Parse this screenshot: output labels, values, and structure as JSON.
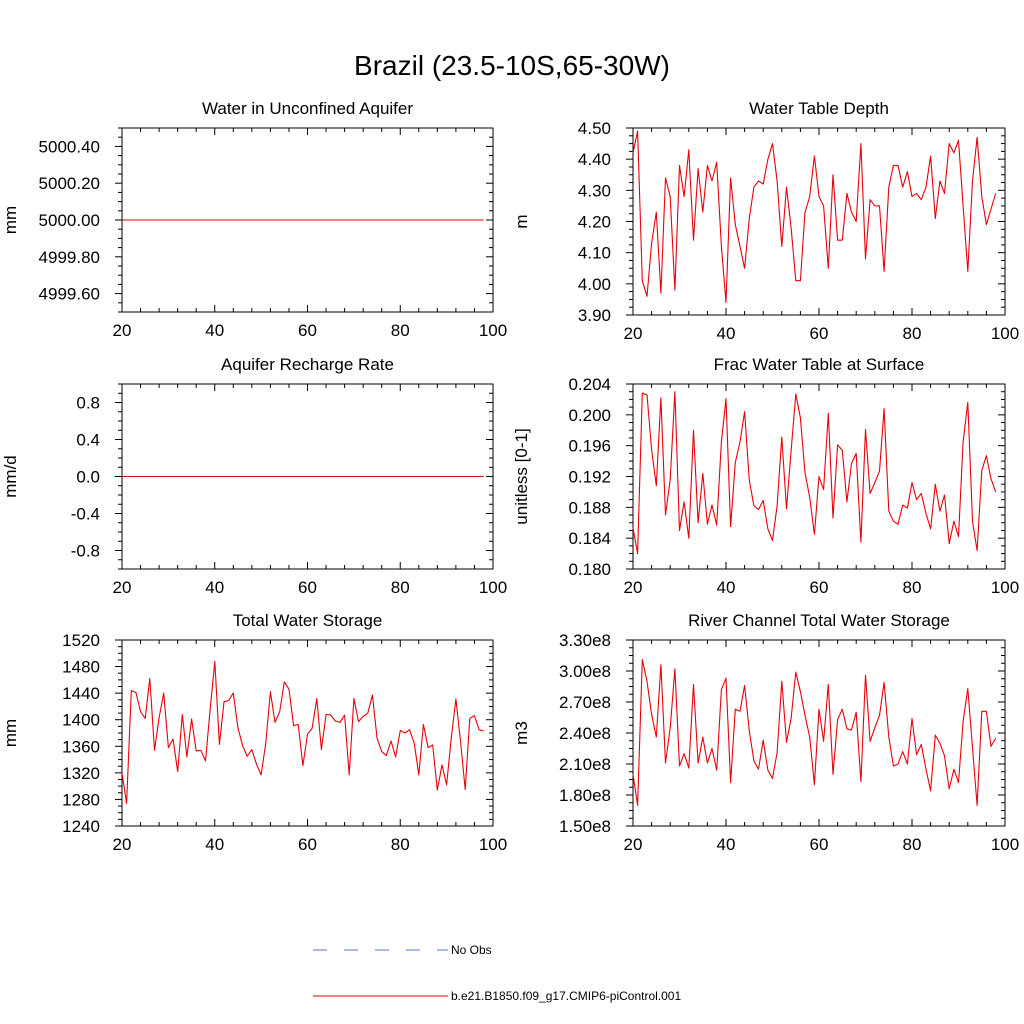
{
  "figure": {
    "title": "Brazil (23.5-10S,65-30W)",
    "legend": {
      "entries": [
        {
          "label": "No Obs",
          "color": "#5b6fd6",
          "style": "dashed"
        },
        {
          "label": "b.e21.B1850.f09_g17.CMIP6-piControl.001",
          "color": "#e8000b",
          "style": "solid"
        }
      ]
    }
  },
  "chart_data": [
    {
      "type": "line",
      "title": "Water in Unconfined Aquifer",
      "xlabel": "",
      "ylabel": "mm",
      "xlim": [
        20,
        100
      ],
      "ylim": [
        4999.5,
        5000.5
      ],
      "xticks": [
        20,
        40,
        60,
        80,
        100
      ],
      "xtick_labels": [
        "20",
        "40",
        "60",
        "80",
        "100"
      ],
      "yticks": [
        4999.6,
        4999.8,
        5000.0,
        5000.2,
        5000.4
      ],
      "ytick_labels": [
        "4999.60",
        "4999.80",
        "5000.00",
        "5000.20",
        "5000.40"
      ],
      "series": [
        {
          "color": "#e8000b",
          "x": [
            20,
            98
          ],
          "y": [
            5000.0,
            5000.0
          ]
        }
      ]
    },
    {
      "type": "line",
      "title": "Water Table Depth",
      "xlabel": "",
      "ylabel": "m",
      "xlim": [
        20,
        100
      ],
      "ylim": [
        3.9,
        4.5
      ],
      "xticks": [
        20,
        40,
        60,
        80,
        100
      ],
      "xtick_labels": [
        "20",
        "40",
        "60",
        "80",
        "100"
      ],
      "yticks": [
        3.9,
        4.0,
        4.1,
        4.2,
        4.3,
        4.4,
        4.5
      ],
      "ytick_labels": [
        "3.90",
        "4.00",
        "4.10",
        "4.20",
        "4.30",
        "4.40",
        "4.50"
      ],
      "series": [
        {
          "color": "#e8000b",
          "x": [
            20,
            21,
            22,
            23,
            24,
            25,
            26,
            27,
            28,
            29,
            30,
            31,
            32,
            33,
            34,
            35,
            36,
            37,
            38,
            39,
            40,
            41,
            42,
            43,
            44,
            45,
            46,
            47,
            48,
            49,
            50,
            51,
            52,
            53,
            54,
            55,
            56,
            57,
            58,
            59,
            60,
            61,
            62,
            63,
            64,
            65,
            66,
            67,
            68,
            69,
            70,
            71,
            72,
            73,
            74,
            75,
            76,
            77,
            78,
            79,
            80,
            81,
            82,
            83,
            84,
            85,
            86,
            87,
            88,
            89,
            90,
            91,
            92,
            93,
            94,
            95,
            96,
            97,
            98
          ],
          "y": [
            4.42,
            4.49,
            4.01,
            3.96,
            4.13,
            4.23,
            3.97,
            4.34,
            4.28,
            3.98,
            4.38,
            4.28,
            4.43,
            4.14,
            4.37,
            4.23,
            4.38,
            4.33,
            4.39,
            4.12,
            3.94,
            4.34,
            4.19,
            4.12,
            4.05,
            4.21,
            4.31,
            4.33,
            4.32,
            4.4,
            4.45,
            4.33,
            4.12,
            4.31,
            4.18,
            4.01,
            4.01,
            4.23,
            4.28,
            4.41,
            4.28,
            4.25,
            4.05,
            4.35,
            4.14,
            4.14,
            4.29,
            4.23,
            4.2,
            4.45,
            4.08,
            4.27,
            4.25,
            4.25,
            4.04,
            4.31,
            4.38,
            4.38,
            4.31,
            4.36,
            4.28,
            4.29,
            4.27,
            4.31,
            4.41,
            4.21,
            4.33,
            4.29,
            4.45,
            4.42,
            4.46,
            4.25,
            4.04,
            4.33,
            4.47,
            4.28,
            4.19,
            4.24,
            4.29
          ]
        }
      ]
    },
    {
      "type": "line",
      "title": "Aquifer Recharge Rate",
      "xlabel": "",
      "ylabel": "mm/d",
      "xlim": [
        20,
        100
      ],
      "ylim": [
        -1.0,
        1.0
      ],
      "xticks": [
        20,
        40,
        60,
        80,
        100
      ],
      "xtick_labels": [
        "20",
        "40",
        "60",
        "80",
        "100"
      ],
      "yticks": [
        -0.8,
        -0.4,
        0.0,
        0.4,
        0.8
      ],
      "ytick_labels": [
        "-0.8",
        "-0.4",
        "0.0",
        "0.4",
        "0.8"
      ],
      "series": [
        {
          "color": "#e8000b",
          "x": [
            20,
            98
          ],
          "y": [
            0.0,
            0.0
          ]
        }
      ]
    },
    {
      "type": "line",
      "title": "Frac Water Table at Surface",
      "xlabel": "",
      "ylabel": "unitless [0-1]",
      "xlim": [
        20,
        100
      ],
      "ylim": [
        0.18,
        0.204
      ],
      "xticks": [
        20,
        40,
        60,
        80,
        100
      ],
      "xtick_labels": [
        "20",
        "40",
        "60",
        "80",
        "100"
      ],
      "yticks": [
        0.18,
        0.184,
        0.188,
        0.192,
        0.196,
        0.2,
        0.204
      ],
      "ytick_labels": [
        "0.180",
        "0.184",
        "0.188",
        "0.192",
        "0.196",
        "0.200",
        "0.204"
      ],
      "series": [
        {
          "color": "#e8000b",
          "x": [
            20,
            21,
            22,
            23,
            24,
            25,
            26,
            27,
            28,
            29,
            30,
            31,
            32,
            33,
            34,
            35,
            36,
            37,
            38,
            39,
            40,
            41,
            42,
            43,
            44,
            45,
            46,
            47,
            48,
            49,
            50,
            51,
            52,
            53,
            54,
            55,
            56,
            57,
            58,
            59,
            60,
            61,
            62,
            63,
            64,
            65,
            66,
            67,
            68,
            69,
            70,
            71,
            72,
            73,
            74,
            75,
            76,
            77,
            78,
            79,
            80,
            81,
            82,
            83,
            84,
            85,
            86,
            87,
            88,
            89,
            90,
            91,
            92,
            93,
            94,
            95,
            96,
            97,
            98
          ],
          "y": [
            0.1853,
            0.182,
            0.2028,
            0.2026,
            0.1955,
            0.1908,
            0.2022,
            0.187,
            0.1916,
            0.203,
            0.185,
            0.1887,
            0.184,
            0.198,
            0.186,
            0.1924,
            0.1858,
            0.1883,
            0.1857,
            0.1965,
            0.2021,
            0.1855,
            0.1938,
            0.1965,
            0.2004,
            0.1915,
            0.1882,
            0.1877,
            0.1889,
            0.1852,
            0.1837,
            0.1882,
            0.1971,
            0.1878,
            0.1953,
            0.2027,
            0.1996,
            0.1925,
            0.1893,
            0.1845,
            0.192,
            0.1903,
            0.2002,
            0.1866,
            0.1961,
            0.1954,
            0.1887,
            0.1937,
            0.195,
            0.1835,
            0.1981,
            0.1898,
            0.1912,
            0.1927,
            0.2008,
            0.1875,
            0.1862,
            0.1858,
            0.1883,
            0.1879,
            0.1912,
            0.189,
            0.1898,
            0.1872,
            0.1852,
            0.191,
            0.1875,
            0.1896,
            0.1833,
            0.1862,
            0.1842,
            0.1965,
            0.2016,
            0.1862,
            0.1824,
            0.1928,
            0.1947,
            0.1917,
            0.19
          ]
        }
      ]
    },
    {
      "type": "line",
      "title": "Total Water Storage",
      "xlabel": "",
      "ylabel": "mm",
      "xlim": [
        20,
        100
      ],
      "ylim": [
        1240,
        1520
      ],
      "xticks": [
        20,
        40,
        60,
        80,
        100
      ],
      "xtick_labels": [
        "20",
        "40",
        "60",
        "80",
        "100"
      ],
      "yticks": [
        1240,
        1280,
        1320,
        1360,
        1400,
        1440,
        1480,
        1520
      ],
      "ytick_labels": [
        "1240",
        "1280",
        "1320",
        "1360",
        "1400",
        "1440",
        "1480",
        "1520"
      ],
      "series": [
        {
          "color": "#e8000b",
          "x": [
            20,
            21,
            22,
            23,
            24,
            25,
            26,
            27,
            28,
            29,
            30,
            31,
            32,
            33,
            34,
            35,
            36,
            37,
            38,
            39,
            40,
            41,
            42,
            43,
            44,
            45,
            46,
            47,
            48,
            49,
            50,
            51,
            52,
            53,
            54,
            55,
            56,
            57,
            58,
            59,
            60,
            61,
            62,
            63,
            64,
            65,
            66,
            67,
            68,
            69,
            70,
            71,
            72,
            73,
            74,
            75,
            76,
            77,
            78,
            79,
            80,
            81,
            82,
            83,
            84,
            85,
            86,
            87,
            88,
            89,
            90,
            91,
            92,
            93,
            94,
            95,
            96,
            97,
            98
          ],
          "y": [
            1320,
            1274,
            1444,
            1441,
            1412,
            1402,
            1462,
            1354,
            1403,
            1440,
            1358,
            1371,
            1322,
            1408,
            1344,
            1401,
            1353,
            1354,
            1338,
            1415,
            1488,
            1363,
            1427,
            1429,
            1440,
            1388,
            1361,
            1345,
            1355,
            1333,
            1317,
            1365,
            1442,
            1396,
            1412,
            1457,
            1446,
            1391,
            1393,
            1331,
            1378,
            1387,
            1432,
            1355,
            1408,
            1407,
            1398,
            1396,
            1407,
            1317,
            1432,
            1397,
            1405,
            1410,
            1437,
            1372,
            1352,
            1346,
            1368,
            1344,
            1384,
            1380,
            1385,
            1365,
            1317,
            1393,
            1358,
            1362,
            1294,
            1332,
            1302,
            1373,
            1431,
            1368,
            1295,
            1402,
            1406,
            1385,
            1383
          ]
        }
      ]
    },
    {
      "type": "line",
      "title": "River Channel Total Water Storage",
      "xlabel": "",
      "ylabel": "m3",
      "xlim": [
        20,
        100
      ],
      "ylim": [
        150000000,
        330000000
      ],
      "xticks": [
        20,
        40,
        60,
        80,
        100
      ],
      "xtick_labels": [
        "20",
        "40",
        "60",
        "80",
        "100"
      ],
      "yticks": [
        150000000,
        180000000,
        210000000,
        240000000,
        270000000,
        300000000,
        330000000
      ],
      "ytick_labels": [
        "1.50e8",
        "1.80e8",
        "2.10e8",
        "2.40e8",
        "2.70e8",
        "3.00e8",
        "3.30e8"
      ],
      "series": [
        {
          "color": "#e8000b",
          "x": [
            20,
            21,
            22,
            23,
            24,
            25,
            26,
            27,
            28,
            29,
            30,
            31,
            32,
            33,
            34,
            35,
            36,
            37,
            38,
            39,
            40,
            41,
            42,
            43,
            44,
            45,
            46,
            47,
            48,
            49,
            50,
            51,
            52,
            53,
            54,
            55,
            56,
            57,
            58,
            59,
            60,
            61,
            62,
            63,
            64,
            65,
            66,
            67,
            68,
            69,
            70,
            71,
            72,
            73,
            74,
            75,
            76,
            77,
            78,
            79,
            80,
            81,
            82,
            83,
            84,
            85,
            86,
            87,
            88,
            89,
            90,
            91,
            92,
            93,
            94,
            95,
            96,
            97,
            98
          ],
          "y": [
            200000000,
            170000000,
            311000000,
            290000000,
            258000000,
            236000000,
            306000000,
            211000000,
            245000000,
            302000000,
            208000000,
            220000000,
            206000000,
            287000000,
            211000000,
            236000000,
            211000000,
            225000000,
            204000000,
            282000000,
            293000000,
            192000000,
            263000000,
            261000000,
            286000000,
            242000000,
            213000000,
            205000000,
            233000000,
            204000000,
            196000000,
            221000000,
            290000000,
            231000000,
            254000000,
            299000000,
            280000000,
            257000000,
            236000000,
            190000000,
            263000000,
            232000000,
            287000000,
            200000000,
            253000000,
            263000000,
            244000000,
            243000000,
            260000000,
            193000000,
            296000000,
            232000000,
            245000000,
            257000000,
            289000000,
            236000000,
            208000000,
            210000000,
            222000000,
            210000000,
            254000000,
            219000000,
            229000000,
            205000000,
            184000000,
            238000000,
            230000000,
            218000000,
            186000000,
            205000000,
            192000000,
            251000000,
            283000000,
            226000000,
            170000000,
            261000000,
            261000000,
            227000000,
            235000000
          ]
        }
      ]
    }
  ]
}
